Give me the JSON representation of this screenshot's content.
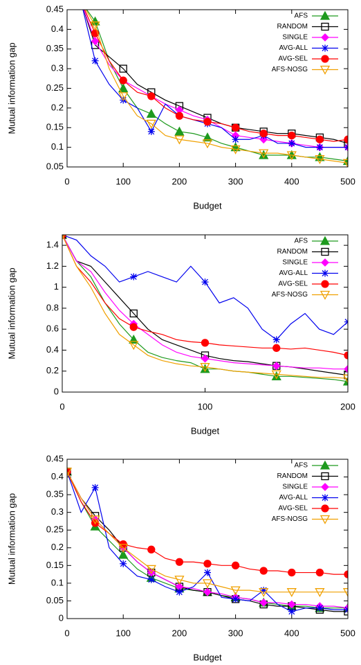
{
  "chart_data": [
    {
      "type": "line",
      "xlabel": "Budget",
      "ylabel": "Mutual information gap",
      "x": [
        25,
        50,
        75,
        100,
        125,
        150,
        175,
        200,
        225,
        250,
        275,
        300,
        325,
        350,
        375,
        400,
        425,
        450,
        475,
        500
      ],
      "xlim": [
        0,
        500
      ],
      "xticks": [
        0,
        100,
        200,
        300,
        400,
        500
      ],
      "ylim": [
        0.05,
        0.45
      ],
      "yticks": [
        0.05,
        0.1,
        0.15,
        0.2,
        0.25,
        0.3,
        0.35,
        0.4,
        0.45
      ],
      "legend": "upper right",
      "series": [
        {
          "name": "AFS",
          "color": "#1e9a1e",
          "marker": "triangle",
          "values": [
            0.47,
            0.42,
            0.32,
            0.25,
            0.2,
            0.185,
            0.16,
            0.14,
            0.135,
            0.125,
            0.11,
            0.1,
            0.09,
            0.08,
            0.08,
            0.08,
            0.075,
            0.075,
            0.07,
            0.065
          ]
        },
        {
          "name": "RANDOM",
          "color": "#000000",
          "marker": "square",
          "values": [
            0.47,
            0.36,
            0.33,
            0.3,
            0.26,
            0.24,
            0.22,
            0.205,
            0.19,
            0.175,
            0.16,
            0.15,
            0.145,
            0.14,
            0.135,
            0.135,
            0.13,
            0.125,
            0.12,
            0.11
          ]
        },
        {
          "name": "SINGLE",
          "color": "#ff00ff",
          "marker": "diamond",
          "values": [
            0.47,
            0.37,
            0.31,
            0.27,
            0.25,
            0.23,
            0.21,
            0.195,
            0.18,
            0.17,
            0.15,
            0.13,
            0.125,
            0.12,
            0.115,
            0.11,
            0.105,
            0.1,
            0.1,
            0.1
          ]
        },
        {
          "name": "AVG-ALL",
          "color": "#0000ee",
          "marker": "star",
          "values": [
            0.47,
            0.32,
            0.26,
            0.22,
            0.2,
            0.14,
            0.21,
            0.18,
            0.17,
            0.16,
            0.15,
            0.12,
            0.12,
            0.13,
            0.11,
            0.11,
            0.1,
            0.1,
            0.1,
            0.1
          ]
        },
        {
          "name": "AVG-SEL",
          "color": "#ff0000",
          "marker": "circle",
          "values": [
            0.47,
            0.39,
            0.32,
            0.27,
            0.24,
            0.23,
            0.2,
            0.18,
            0.17,
            0.165,
            0.16,
            0.15,
            0.14,
            0.135,
            0.13,
            0.13,
            0.125,
            0.12,
            0.115,
            0.12
          ]
        },
        {
          "name": "AFS-NOSG",
          "color": "#f0a000",
          "marker": "down-triangle",
          "values": [
            0.47,
            0.41,
            0.3,
            0.23,
            0.18,
            0.16,
            0.13,
            0.12,
            0.115,
            0.11,
            0.1,
            0.095,
            0.09,
            0.085,
            0.085,
            0.08,
            0.075,
            0.07,
            0.065,
            0.06
          ]
        }
      ]
    },
    {
      "type": "line",
      "xlabel": "Budget",
      "ylabel": "Mutual information gap",
      "x": [
        0,
        10,
        20,
        30,
        40,
        50,
        60,
        70,
        80,
        90,
        100,
        110,
        120,
        130,
        140,
        150,
        160,
        170,
        180,
        190,
        200
      ],
      "xlim": [
        0,
        200
      ],
      "xticks": [
        0,
        100,
        200
      ],
      "ylim": [
        0,
        1.5
      ],
      "yticks": [
        0,
        0.2,
        0.4,
        0.6,
        0.8,
        1,
        1.2,
        1.4
      ],
      "legend": "upper right",
      "series": [
        {
          "name": "AFS",
          "color": "#1e9a1e",
          "marker": "triangle",
          "values": [
            1.5,
            1.25,
            1.1,
            0.85,
            0.65,
            0.5,
            0.38,
            0.33,
            0.3,
            0.28,
            0.22,
            0.22,
            0.2,
            0.19,
            0.17,
            0.15,
            0.15,
            0.14,
            0.13,
            0.12,
            0.1
          ]
        },
        {
          "name": "RANDOM",
          "color": "#000000",
          "marker": "square",
          "values": [
            1.5,
            1.25,
            1.2,
            1.05,
            0.9,
            0.75,
            0.6,
            0.5,
            0.45,
            0.4,
            0.35,
            0.32,
            0.3,
            0.29,
            0.27,
            0.25,
            0.24,
            0.22,
            0.2,
            0.18,
            0.16
          ]
        },
        {
          "name": "SINGLE",
          "color": "#ff00ff",
          "marker": "diamond",
          "values": [
            1.5,
            1.25,
            1.15,
            0.95,
            0.78,
            0.65,
            0.55,
            0.45,
            0.38,
            0.34,
            0.32,
            0.3,
            0.28,
            0.27,
            0.26,
            0.25,
            0.24,
            0.23,
            0.23,
            0.22,
            0.22
          ]
        },
        {
          "name": "AVG-ALL",
          "color": "#0000ee",
          "marker": "star",
          "values": [
            1.5,
            1.45,
            1.3,
            1.2,
            1.05,
            1.1,
            1.15,
            1.1,
            1.05,
            1.2,
            1.05,
            0.85,
            0.9,
            0.8,
            0.6,
            0.5,
            0.65,
            0.75,
            0.6,
            0.55,
            0.67
          ]
        },
        {
          "name": "AVG-SEL",
          "color": "#ff0000",
          "marker": "circle",
          "values": [
            1.5,
            1.2,
            1.05,
            0.85,
            0.7,
            0.62,
            0.58,
            0.55,
            0.5,
            0.48,
            0.47,
            0.45,
            0.44,
            0.43,
            0.42,
            0.42,
            0.41,
            0.42,
            0.4,
            0.38,
            0.35
          ]
        },
        {
          "name": "AFS-NOSG",
          "color": "#f0a000",
          "marker": "down-triangle",
          "values": [
            1.5,
            1.2,
            1.0,
            0.75,
            0.55,
            0.45,
            0.35,
            0.3,
            0.27,
            0.25,
            0.24,
            0.22,
            0.2,
            0.19,
            0.18,
            0.17,
            0.16,
            0.15,
            0.14,
            0.14,
            0.13
          ]
        }
      ]
    },
    {
      "type": "line",
      "xlabel": "Budget",
      "ylabel": "Mutual information gap",
      "x": [
        0,
        25,
        50,
        75,
        100,
        125,
        150,
        175,
        200,
        225,
        250,
        275,
        300,
        325,
        350,
        375,
        400,
        425,
        450,
        475,
        500
      ],
      "xlim": [
        0,
        500
      ],
      "xticks": [
        0,
        100,
        200,
        300,
        400,
        500
      ],
      "ylim": [
        0,
        0.45
      ],
      "yticks": [
        0,
        0.05,
        0.1,
        0.15,
        0.2,
        0.25,
        0.3,
        0.35,
        0.4,
        0.45
      ],
      "legend": "upper right",
      "series": [
        {
          "name": "AFS",
          "color": "#1e9a1e",
          "marker": "triangle",
          "values": [
            0.415,
            0.33,
            0.26,
            0.22,
            0.18,
            0.14,
            0.115,
            0.1,
            0.085,
            0.08,
            0.075,
            0.065,
            0.06,
            0.055,
            0.045,
            0.04,
            0.035,
            0.035,
            0.03,
            0.03,
            0.03
          ]
        },
        {
          "name": "RANDOM",
          "color": "#000000",
          "marker": "square",
          "values": [
            0.415,
            0.34,
            0.29,
            0.25,
            0.2,
            0.16,
            0.13,
            0.11,
            0.09,
            0.08,
            0.075,
            0.065,
            0.055,
            0.05,
            0.04,
            0.035,
            0.035,
            0.03,
            0.025,
            0.02,
            0.02
          ]
        },
        {
          "name": "SINGLE",
          "color": "#ff00ff",
          "marker": "diamond",
          "values": [
            0.415,
            0.34,
            0.28,
            0.24,
            0.2,
            0.16,
            0.13,
            0.11,
            0.09,
            0.085,
            0.075,
            0.07,
            0.06,
            0.055,
            0.045,
            0.045,
            0.04,
            0.04,
            0.035,
            0.035,
            0.03
          ]
        },
        {
          "name": "AVG-ALL",
          "color": "#0000ee",
          "marker": "star",
          "values": [
            0.415,
            0.3,
            0.37,
            0.2,
            0.155,
            0.12,
            0.11,
            0.09,
            0.075,
            0.09,
            0.13,
            0.06,
            0.055,
            0.05,
            0.08,
            0.04,
            0.02,
            0.03,
            0.03,
            0.025,
            0.025
          ]
        },
        {
          "name": "AVG-SEL",
          "color": "#ff0000",
          "marker": "circle",
          "values": [
            0.415,
            0.33,
            0.27,
            0.24,
            0.21,
            0.2,
            0.195,
            0.17,
            0.16,
            0.16,
            0.155,
            0.15,
            0.15,
            0.14,
            0.135,
            0.135,
            0.13,
            0.13,
            0.13,
            0.125,
            0.125
          ]
        },
        {
          "name": "AFS-NOSG",
          "color": "#f0a000",
          "marker": "down-triangle",
          "values": [
            0.415,
            0.34,
            0.28,
            0.24,
            0.2,
            0.17,
            0.14,
            0.12,
            0.11,
            0.1,
            0.1,
            0.09,
            0.08,
            0.08,
            0.075,
            0.075,
            0.075,
            0.075,
            0.075,
            0.075,
            0.075
          ]
        }
      ]
    }
  ]
}
